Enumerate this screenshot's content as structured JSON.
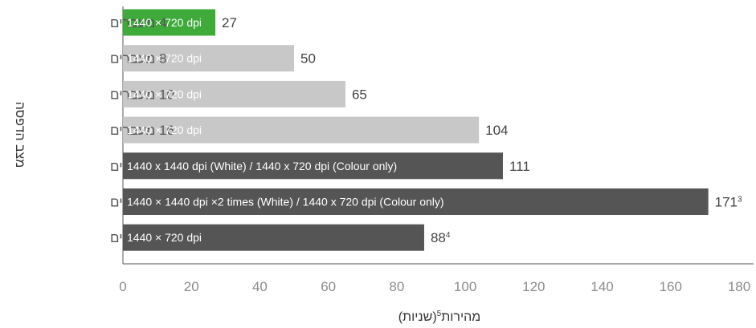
{
  "chart_data": {
    "type": "bar",
    "orientation": "horizontal",
    "xlabel_parts": [
      "מהירות",
      "5",
      "(שניות)"
    ],
    "ylabel": "מצב הדפסה",
    "xlim": [
      0,
      180
    ],
    "xticks": [
      "0",
      "20",
      "40",
      "60",
      "80",
      "100",
      "120",
      "140",
      "160",
      "180"
    ],
    "grid": false,
    "categories": [
      "4 מעברים",
      "8 מעברים",
      "10 מעברים",
      "16 מעברים",
      "8 מעברים",
      "8 מעברים",
      "4/8 מעברים"
    ],
    "bar_labels": [
      "1440 × 720 dpi",
      "1440 × 720 dpi",
      "1440 × 720 dpi",
      "1440 × 720 dpi",
      "1440 x 1440 dpi (White) / 1440 x 720 dpi (Colour only)",
      "1440 × 1440 dpi ×2 times (White) / 1440 x 720 dpi (Colour only)",
      "1440 × 720 dpi"
    ],
    "values": [
      27,
      50,
      65,
      104,
      111,
      171,
      88
    ],
    "value_labels": [
      "27",
      "50",
      "65",
      "104",
      "111",
      "171",
      "88"
    ],
    "value_superscripts": [
      "",
      "",
      "",
      "",
      "",
      "3",
      "4"
    ],
    "colors": [
      "#3daa3a",
      "#c8c8c8",
      "#c8c8c8",
      "#c8c8c8",
      "#555555",
      "#555555",
      "#555555"
    ],
    "axis_color": "#555555"
  }
}
